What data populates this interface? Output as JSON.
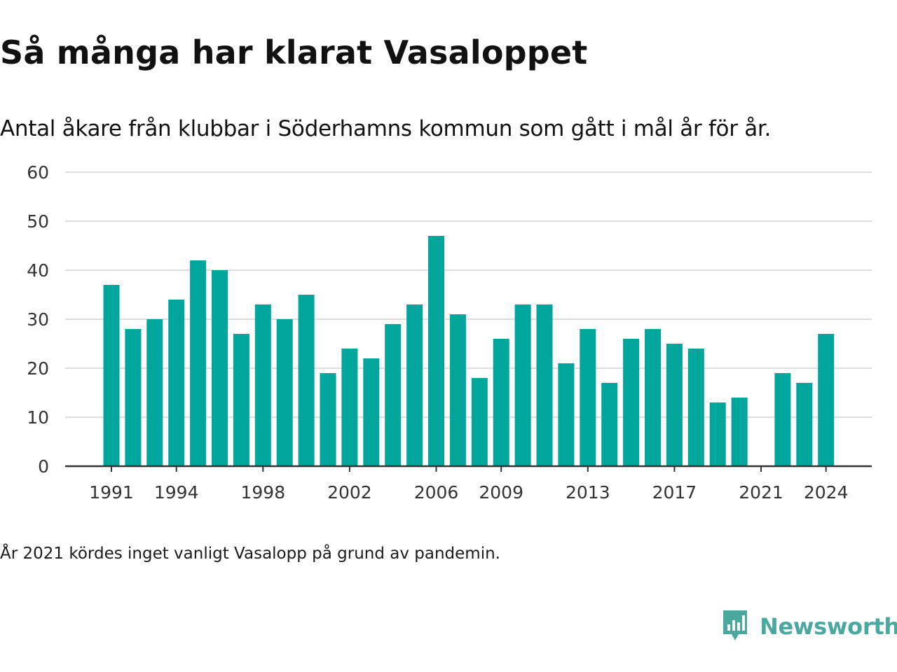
{
  "header": {
    "title": "Så många har klarat Vasaloppet",
    "subtitle": "Antal åkare från klubbar i Söderhamns kommun som gått i mål år för år."
  },
  "footer": {
    "note": "År 2021 kördes inget vanligt Vasalopp på grund av pandemin.",
    "brand": "Newsworthy",
    "brand_icon": "newsworthy-logo-icon"
  },
  "colors": {
    "bar": "#00a69c",
    "grid": "#dddddd",
    "axis": "#333333",
    "brand": "#4aa89f"
  },
  "chart_data": {
    "type": "bar",
    "title": "Så många har klarat Vasaloppet",
    "subtitle": "Antal åkare från klubbar i Söderhamns kommun som gått i mål år för år.",
    "xlabel": "",
    "ylabel": "",
    "categories": [
      1991,
      1992,
      1993,
      1994,
      1995,
      1996,
      1997,
      1998,
      1999,
      2000,
      2001,
      2002,
      2003,
      2004,
      2005,
      2006,
      2007,
      2008,
      2009,
      2010,
      2011,
      2012,
      2013,
      2014,
      2015,
      2016,
      2017,
      2018,
      2019,
      2020,
      2021,
      2022,
      2023,
      2024
    ],
    "values": [
      37,
      28,
      30,
      34,
      42,
      40,
      27,
      33,
      30,
      35,
      19,
      24,
      22,
      29,
      33,
      47,
      31,
      18,
      26,
      33,
      33,
      21,
      28,
      17,
      26,
      28,
      25,
      24,
      13,
      14,
      null,
      19,
      17,
      27
    ],
    "x_tick_labels": [
      "1991",
      "1994",
      "1998",
      "2002",
      "2006",
      "2009",
      "2013",
      "2017",
      "2021",
      "2024"
    ],
    "y_tick_labels": [
      "0",
      "10",
      "20",
      "30",
      "40",
      "50",
      "60"
    ],
    "ylim": [
      0,
      60
    ],
    "grid": true,
    "legend": "none"
  }
}
